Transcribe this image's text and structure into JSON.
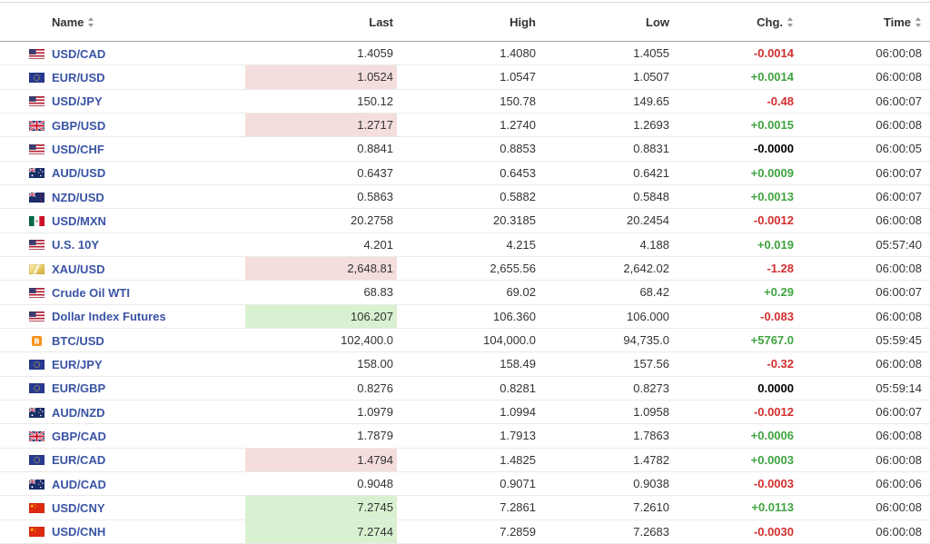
{
  "colors": {
    "positive_change": "#3fa33f",
    "negative_change": "#d42e2e",
    "zero_change": "#000000",
    "flash_up_background": "#d9f1d0",
    "flash_down_background": "#f4dedd",
    "instrument_link": "#3a54a5"
  },
  "table": {
    "columns": [
      {
        "label": "Name",
        "sortable": true,
        "sort_icon": "sort-arrows-icon"
      },
      {
        "label": "Last",
        "sortable": false
      },
      {
        "label": "High",
        "sortable": false
      },
      {
        "label": "Low",
        "sortable": false
      },
      {
        "label": "Chg.",
        "sortable": true,
        "sort_icon": "sort-arrows-icon"
      },
      {
        "label": "Time",
        "sortable": true,
        "sort_icon": "sort-arrows-icon"
      }
    ],
    "rows": [
      {
        "flag_icon": "us-flag-icon",
        "name": "USD/CAD",
        "last": "1.4059",
        "last_flash": "none",
        "high": "1.4080",
        "low": "1.4055",
        "chg": "-0.0014",
        "chg_dir": "down",
        "time": "06:00:08"
      },
      {
        "flag_icon": "eu-flag-icon",
        "name": "EUR/USD",
        "last": "1.0524",
        "last_flash": "down",
        "high": "1.0547",
        "low": "1.0507",
        "chg": "+0.0014",
        "chg_dir": "up",
        "time": "06:00:08"
      },
      {
        "flag_icon": "us-flag-icon",
        "name": "USD/JPY",
        "last": "150.12",
        "last_flash": "none",
        "high": "150.78",
        "low": "149.65",
        "chg": "-0.48",
        "chg_dir": "down",
        "time": "06:00:07"
      },
      {
        "flag_icon": "uk-flag-icon",
        "name": "GBP/USD",
        "last": "1.2717",
        "last_flash": "down",
        "high": "1.2740",
        "low": "1.2693",
        "chg": "+0.0015",
        "chg_dir": "up",
        "time": "06:00:08"
      },
      {
        "flag_icon": "us-flag-icon",
        "name": "USD/CHF",
        "last": "0.8841",
        "last_flash": "none",
        "high": "0.8853",
        "low": "0.8831",
        "chg": "-0.0000",
        "chg_dir": "zero",
        "time": "06:00:05"
      },
      {
        "flag_icon": "australia-flag-icon",
        "name": "AUD/USD",
        "last": "0.6437",
        "last_flash": "none",
        "high": "0.6453",
        "low": "0.6421",
        "chg": "+0.0009",
        "chg_dir": "up",
        "time": "06:00:07"
      },
      {
        "flag_icon": "new-zealand-flag-icon",
        "name": "NZD/USD",
        "last": "0.5863",
        "last_flash": "none",
        "high": "0.5882",
        "low": "0.5848",
        "chg": "+0.0013",
        "chg_dir": "up",
        "time": "06:00:07"
      },
      {
        "flag_icon": "mexico-flag-icon",
        "name": "USD/MXN",
        "last": "20.2758",
        "last_flash": "none",
        "high": "20.3185",
        "low": "20.2454",
        "chg": "-0.0012",
        "chg_dir": "down",
        "time": "06:00:08"
      },
      {
        "flag_icon": "us-flag-icon",
        "name": "U.S. 10Y",
        "last": "4.201",
        "last_flash": "none",
        "high": "4.215",
        "low": "4.188",
        "chg": "+0.019",
        "chg_dir": "up",
        "time": "05:57:40"
      },
      {
        "flag_icon": "gold-bar-icon",
        "name": "XAU/USD",
        "last": "2,648.81",
        "last_flash": "down",
        "high": "2,655.56",
        "low": "2,642.02",
        "chg": "-1.28",
        "chg_dir": "down",
        "time": "06:00:08"
      },
      {
        "flag_icon": "us-flag-icon",
        "name": "Crude Oil WTI",
        "last": "68.83",
        "last_flash": "none",
        "high": "69.02",
        "low": "68.42",
        "chg": "+0.29",
        "chg_dir": "up",
        "time": "06:00:07"
      },
      {
        "flag_icon": "us-flag-icon",
        "name": "Dollar Index Futures",
        "last": "106.207",
        "last_flash": "up",
        "high": "106.360",
        "low": "106.000",
        "chg": "-0.083",
        "chg_dir": "down",
        "time": "06:00:08"
      },
      {
        "flag_icon": "bitcoin-icon",
        "name": "BTC/USD",
        "last": "102,400.0",
        "last_flash": "none",
        "high": "104,000.0",
        "low": "94,735.0",
        "chg": "+5767.0",
        "chg_dir": "up",
        "time": "05:59:45"
      },
      {
        "flag_icon": "eu-flag-icon",
        "name": "EUR/JPY",
        "last": "158.00",
        "last_flash": "none",
        "high": "158.49",
        "low": "157.56",
        "chg": "-0.32",
        "chg_dir": "down",
        "time": "06:00:08"
      },
      {
        "flag_icon": "eu-flag-icon",
        "name": "EUR/GBP",
        "last": "0.8276",
        "last_flash": "none",
        "high": "0.8281",
        "low": "0.8273",
        "chg": "0.0000",
        "chg_dir": "zero",
        "time": "05:59:14"
      },
      {
        "flag_icon": "australia-flag-icon",
        "name": "AUD/NZD",
        "last": "1.0979",
        "last_flash": "none",
        "high": "1.0994",
        "low": "1.0958",
        "chg": "-0.0012",
        "chg_dir": "down",
        "time": "06:00:07"
      },
      {
        "flag_icon": "uk-flag-icon",
        "name": "GBP/CAD",
        "last": "1.7879",
        "last_flash": "none",
        "high": "1.7913",
        "low": "1.7863",
        "chg": "+0.0006",
        "chg_dir": "up",
        "time": "06:00:08"
      },
      {
        "flag_icon": "eu-flag-icon",
        "name": "EUR/CAD",
        "last": "1.4794",
        "last_flash": "down",
        "high": "1.4825",
        "low": "1.4782",
        "chg": "+0.0003",
        "chg_dir": "up",
        "time": "06:00:08"
      },
      {
        "flag_icon": "australia-flag-icon",
        "name": "AUD/CAD",
        "last": "0.9048",
        "last_flash": "none",
        "high": "0.9071",
        "low": "0.9038",
        "chg": "-0.0003",
        "chg_dir": "down",
        "time": "06:00:06"
      },
      {
        "flag_icon": "china-flag-icon",
        "name": "USD/CNY",
        "last": "7.2745",
        "last_flash": "up",
        "high": "7.2861",
        "low": "7.2610",
        "chg": "+0.0113",
        "chg_dir": "up",
        "time": "06:00:08"
      },
      {
        "flag_icon": "china-flag-icon",
        "name": "USD/CNH",
        "last": "7.2744",
        "last_flash": "up",
        "high": "7.2859",
        "low": "7.2683",
        "chg": "-0.0030",
        "chg_dir": "down",
        "time": "06:00:08"
      }
    ]
  }
}
